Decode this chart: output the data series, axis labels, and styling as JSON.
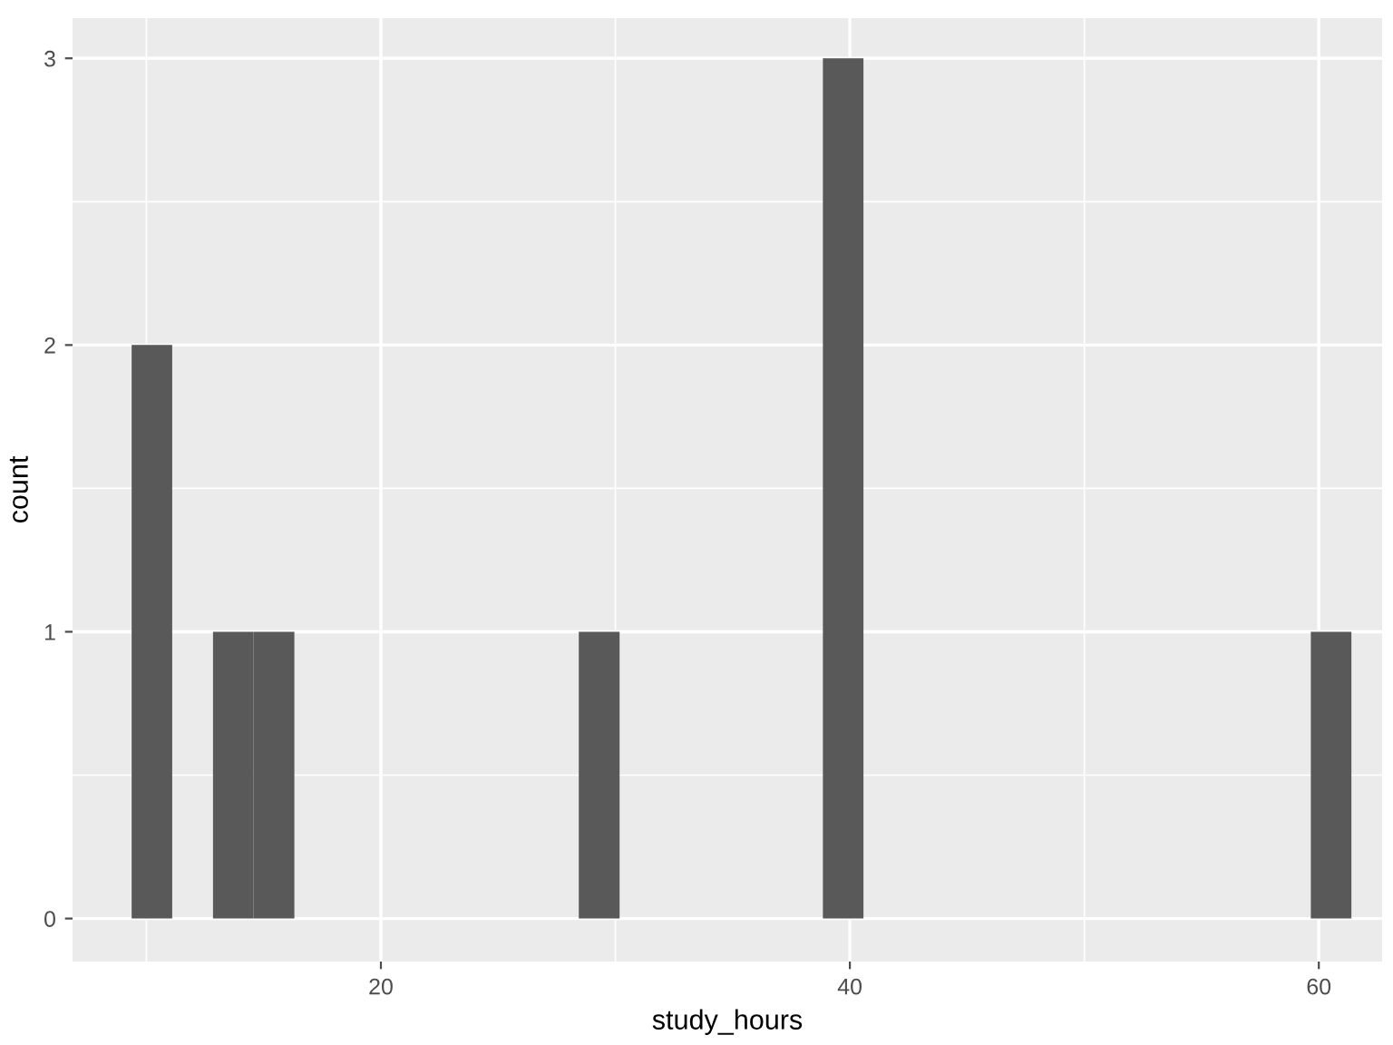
{
  "chart_data": {
    "type": "histogram",
    "xlabel": "study_hours",
    "ylabel": "count",
    "color": "#595959",
    "bins": [
      9.37,
      11.1,
      12.84,
      14.57,
      16.31,
      18.04,
      19.77,
      21.51,
      23.24,
      24.98,
      26.71,
      28.44,
      30.18,
      31.91,
      33.65,
      35.38,
      37.11,
      38.85,
      40.58,
      42.32,
      44.05,
      45.78,
      47.52,
      49.25,
      50.99,
      52.72,
      54.45,
      56.19,
      57.92,
      59.66,
      61.39
    ],
    "values": [
      2,
      0,
      1,
      1,
      0,
      0,
      0,
      0,
      0,
      0,
      0,
      1,
      0,
      0,
      0,
      0,
      0,
      3,
      0,
      0,
      0,
      0,
      0,
      0,
      0,
      0,
      0,
      0,
      0,
      1
    ],
    "xlim": [
      6.85,
      62.7
    ],
    "ylim": [
      -0.15,
      3.14
    ],
    "xticks": [
      20,
      40,
      60
    ],
    "yticks": [
      0,
      1,
      2,
      3
    ],
    "grid": true
  }
}
